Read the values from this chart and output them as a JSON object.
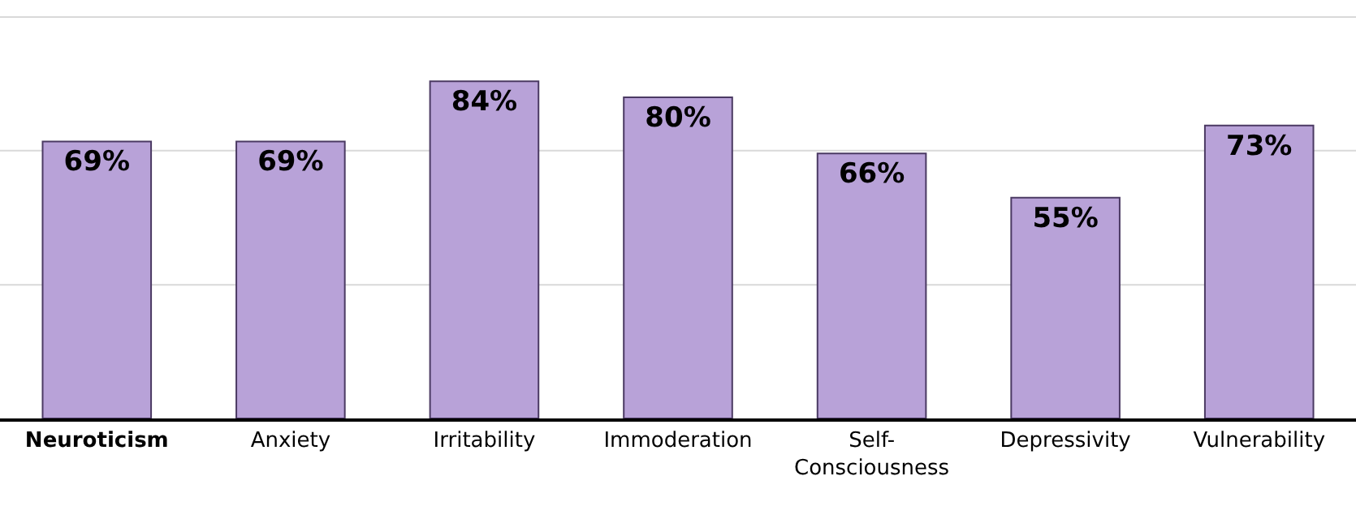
{
  "chart_data": {
    "type": "bar",
    "categories": [
      "Neuroticism",
      "Anxiety",
      "Irritability",
      "Immoderation",
      "Self-Consciousness",
      "Depressivity",
      "Vulnerability"
    ],
    "values": [
      69,
      69,
      84,
      80,
      66,
      55,
      73
    ],
    "color": "#b8a2d8",
    "data_labels": true,
    "value_labels": [
      "69%",
      "69%",
      "84%",
      "80%",
      "66%",
      "55%",
      "73%"
    ],
    "ref_lines": [
      {
        "axis": "y",
        "value": 33.3,
        "color": "#d9d9d9"
      },
      {
        "axis": "y",
        "value": 66.7,
        "color": "#d9d9d9"
      },
      {
        "axis": "y",
        "value": 100,
        "color": "#d9d9d9"
      }
    ],
    "tick_labels": "x"
  }
}
